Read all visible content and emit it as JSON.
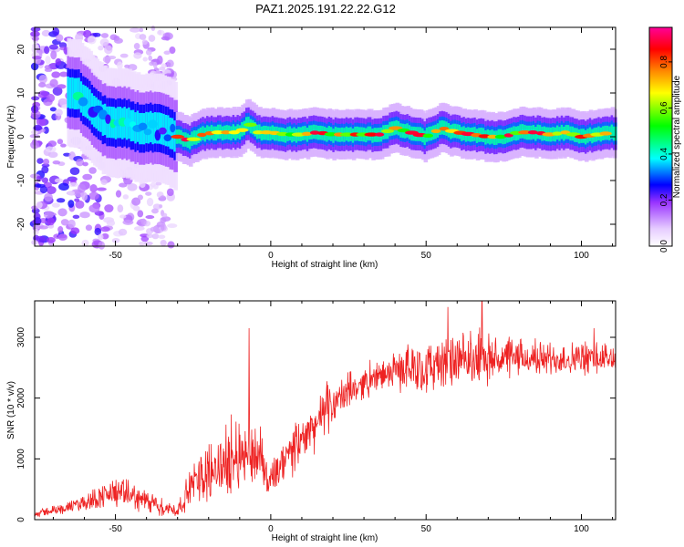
{
  "title": "PAZ1.2025.191.22.22.G12",
  "chart_data": [
    {
      "type": "heatmap",
      "xlabel": "Height of straight line (km)",
      "ylabel": "Frequency (Hz)",
      "xlim": [
        -76,
        111
      ],
      "ylim": [
        -25,
        25
      ],
      "xticks": [
        -50,
        0,
        50,
        100
      ],
      "yticks": [
        -20,
        -10,
        0,
        10,
        20
      ],
      "colorbar": {
        "label": "Normalized spectral amplitude",
        "range": [
          0,
          0.95
        ],
        "ticks": [
          "0.0",
          "0.2",
          "0.4",
          "0.6",
          "0.8"
        ],
        "colors": [
          "#ffffff",
          "#e6ccff",
          "#9933ff",
          "#0000ff",
          "#00ffff",
          "#00ff00",
          "#ffff00",
          "#ff8800",
          "#ff0000",
          "#ff0099"
        ]
      },
      "ridge": {
        "x": [
          -62,
          -58,
          -54,
          -50,
          -46,
          -42,
          -38,
          -34,
          -30,
          -26,
          -22,
          -18,
          -14,
          -10,
          -7,
          -4,
          0,
          5,
          10,
          15,
          20,
          25,
          30,
          35,
          40,
          45,
          50,
          55,
          60,
          65,
          70,
          75,
          80,
          85,
          90,
          95,
          100,
          105,
          111
        ],
        "y": [
          10,
          7,
          4,
          3,
          3,
          2,
          2,
          1.5,
          0,
          -1,
          0.5,
          1,
          1,
          1,
          3,
          1,
          1,
          0.5,
          0.5,
          1,
          0.5,
          0.5,
          0.5,
          0.5,
          2,
          1,
          0,
          2,
          1,
          0.5,
          0,
          0,
          1,
          1,
          0.5,
          1,
          0,
          0.5,
          1
        ]
      }
    },
    {
      "type": "line",
      "xlabel": "Height of straight line (km)",
      "ylabel": "SNR (10 * v/v)",
      "xlim": [
        -76,
        111
      ],
      "ylim": [
        0,
        3600
      ],
      "xticks": [
        -50,
        0,
        50,
        100
      ],
      "yticks": [
        0,
        1000,
        2000,
        3000
      ],
      "color": "#ee2222",
      "x": [
        -76,
        -70,
        -65,
        -60,
        -55,
        -50,
        -45,
        -40,
        -35,
        -30,
        -25,
        -20,
        -15,
        -10,
        -5,
        0,
        5,
        10,
        15,
        20,
        25,
        30,
        35,
        40,
        45,
        50,
        55,
        60,
        65,
        70,
        75,
        80,
        85,
        90,
        95,
        100,
        105,
        111
      ],
      "y": [
        100,
        150,
        200,
        280,
        380,
        450,
        400,
        300,
        200,
        150,
        600,
        800,
        900,
        1100,
        1100,
        600,
        1000,
        1300,
        1600,
        1900,
        2100,
        2250,
        2350,
        2450,
        2500,
        2500,
        2550,
        2600,
        2600,
        2650,
        2650,
        2650,
        2650,
        2650,
        2650,
        2650,
        2650,
        2650
      ],
      "noise": [
        60,
        80,
        100,
        140,
        200,
        250,
        220,
        200,
        150,
        120,
        350,
        500,
        550,
        600,
        500,
        350,
        400,
        400,
        400,
        350,
        300,
        250,
        220,
        300,
        400,
        450,
        450,
        450,
        400,
        400,
        350,
        300,
        280,
        280,
        280,
        280,
        280,
        280
      ],
      "spikes": [
        {
          "x": -7,
          "y": 3150
        },
        {
          "x": 68,
          "y": 3600
        },
        {
          "x": 57,
          "y": 3500
        },
        {
          "x": 104,
          "y": 3150
        }
      ]
    }
  ]
}
